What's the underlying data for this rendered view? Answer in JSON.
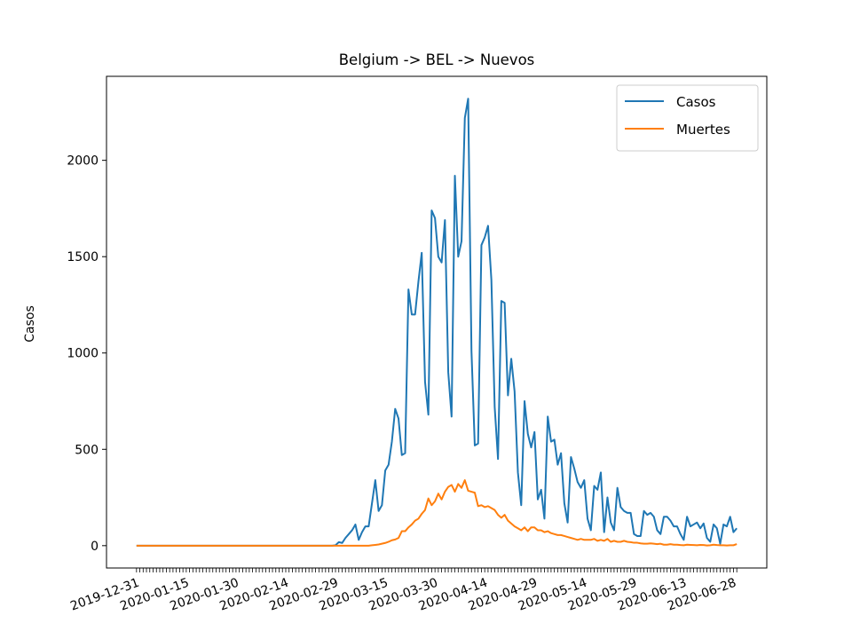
{
  "chart_data": {
    "type": "line",
    "title": "Belgium -> BEL -> Nuevos",
    "y_label": "Casos",
    "categories": [
      "2019-12-31",
      null,
      null,
      null,
      null,
      null,
      null,
      null,
      null,
      null,
      null,
      null,
      null,
      null,
      null,
      "2020-01-15",
      null,
      null,
      null,
      null,
      null,
      null,
      null,
      null,
      null,
      null,
      null,
      null,
      null,
      null,
      "2020-01-30",
      null,
      null,
      null,
      null,
      null,
      null,
      null,
      null,
      null,
      null,
      null,
      null,
      null,
      null,
      "2020-02-14",
      null,
      null,
      null,
      null,
      null,
      null,
      null,
      null,
      null,
      null,
      null,
      null,
      null,
      null,
      "2020-02-29",
      null,
      null,
      null,
      null,
      null,
      null,
      null,
      null,
      null,
      null,
      null,
      null,
      null,
      null,
      "2020-03-15",
      null,
      null,
      null,
      null,
      null,
      null,
      null,
      null,
      null,
      null,
      null,
      null,
      null,
      null,
      "2020-03-30",
      null,
      null,
      null,
      null,
      null,
      null,
      null,
      null,
      null,
      null,
      null,
      null,
      null,
      null,
      "2020-04-14",
      null,
      null,
      null,
      null,
      null,
      null,
      null,
      null,
      null,
      null,
      null,
      null,
      null,
      null,
      "2020-04-29",
      null,
      null,
      null,
      null,
      null,
      null,
      null,
      null,
      null,
      null,
      null,
      null,
      null,
      null,
      "2020-05-14",
      null,
      null,
      null,
      null,
      null,
      null,
      null,
      null,
      null,
      null,
      null,
      null,
      null,
      null,
      "2020-05-29",
      null,
      null,
      null,
      null,
      null,
      null,
      null,
      null,
      null,
      null,
      null,
      null,
      null,
      null,
      "2020-06-13",
      null,
      null,
      null,
      null,
      null,
      null,
      null,
      null,
      null,
      null,
      null,
      null,
      null,
      null,
      "2020-06-28",
      null
    ],
    "series": [
      {
        "name": "Casos",
        "color": "#1f77b4",
        "values": [
          0,
          0,
          0,
          0,
          0,
          0,
          0,
          0,
          0,
          0,
          0,
          0,
          0,
          0,
          0,
          0,
          0,
          0,
          0,
          0,
          0,
          0,
          0,
          0,
          0,
          0,
          0,
          0,
          0,
          0,
          0,
          0,
          0,
          0,
          0,
          0,
          0,
          0,
          0,
          0,
          0,
          0,
          0,
          0,
          0,
          0,
          0,
          0,
          0,
          0,
          0,
          0,
          0,
          0,
          0,
          0,
          0,
          0,
          0,
          0,
          2,
          18,
          14,
          40,
          60,
          80,
          110,
          30,
          70,
          100,
          100,
          220,
          340,
          180,
          210,
          390,
          420,
          540,
          710,
          660,
          470,
          480,
          1330,
          1200,
          1200,
          1370,
          1520,
          850,
          680,
          1740,
          1700,
          1500,
          1470,
          1690,
          900,
          670,
          1920,
          1500,
          1580,
          2220,
          2320,
          1010,
          520,
          530,
          1560,
          1600,
          1660,
          1380,
          720,
          450,
          1270,
          1260,
          780,
          970,
          800,
          380,
          210,
          750,
          580,
          510,
          590,
          240,
          290,
          140,
          670,
          540,
          550,
          420,
          480,
          220,
          120,
          460,
          400,
          330,
          300,
          340,
          140,
          80,
          310,
          290,
          380,
          70,
          250,
          120,
          80,
          300,
          200,
          180,
          170,
          170,
          60,
          50,
          50,
          180,
          160,
          170,
          150,
          80,
          60,
          150,
          150,
          130,
          100,
          100,
          60,
          30,
          150,
          100,
          110,
          120,
          90,
          115,
          40,
          20,
          110,
          90,
          10,
          110,
          100,
          150,
          70,
          90
        ]
      },
      {
        "name": "Muertes",
        "color": "#ff7f0e",
        "values": [
          0,
          0,
          0,
          0,
          0,
          0,
          0,
          0,
          0,
          0,
          0,
          0,
          0,
          0,
          0,
          0,
          0,
          0,
          0,
          0,
          0,
          0,
          0,
          0,
          0,
          0,
          0,
          0,
          0,
          0,
          0,
          0,
          0,
          0,
          0,
          0,
          0,
          0,
          0,
          0,
          0,
          0,
          0,
          0,
          0,
          0,
          0,
          0,
          0,
          0,
          0,
          0,
          0,
          0,
          0,
          0,
          0,
          0,
          0,
          0,
          0,
          0,
          0,
          0,
          0,
          0,
          0,
          0,
          0,
          0,
          0,
          2,
          4,
          6,
          10,
          14,
          20,
          28,
          32,
          40,
          75,
          75,
          95,
          110,
          130,
          140,
          165,
          185,
          245,
          210,
          230,
          270,
          240,
          280,
          305,
          315,
          280,
          320,
          300,
          340,
          285,
          280,
          275,
          205,
          210,
          200,
          205,
          195,
          185,
          160,
          145,
          160,
          130,
          115,
          100,
          90,
          80,
          95,
          75,
          95,
          95,
          80,
          80,
          70,
          75,
          65,
          60,
          55,
          55,
          50,
          45,
          40,
          35,
          30,
          35,
          30,
          30,
          30,
          35,
          25,
          30,
          25,
          35,
          20,
          25,
          20,
          20,
          25,
          20,
          18,
          15,
          15,
          12,
          10,
          10,
          12,
          10,
          8,
          10,
          5,
          5,
          8,
          5,
          5,
          3,
          2,
          5,
          4,
          3,
          2,
          4,
          3,
          1,
          2,
          5,
          3,
          2,
          2,
          1,
          2,
          2,
          8
        ]
      }
    ],
    "ylim": [
      -116,
      2436
    ],
    "yticks": [
      0,
      500,
      1000,
      1500,
      2000
    ],
    "grid": false,
    "legend": "upper right"
  }
}
